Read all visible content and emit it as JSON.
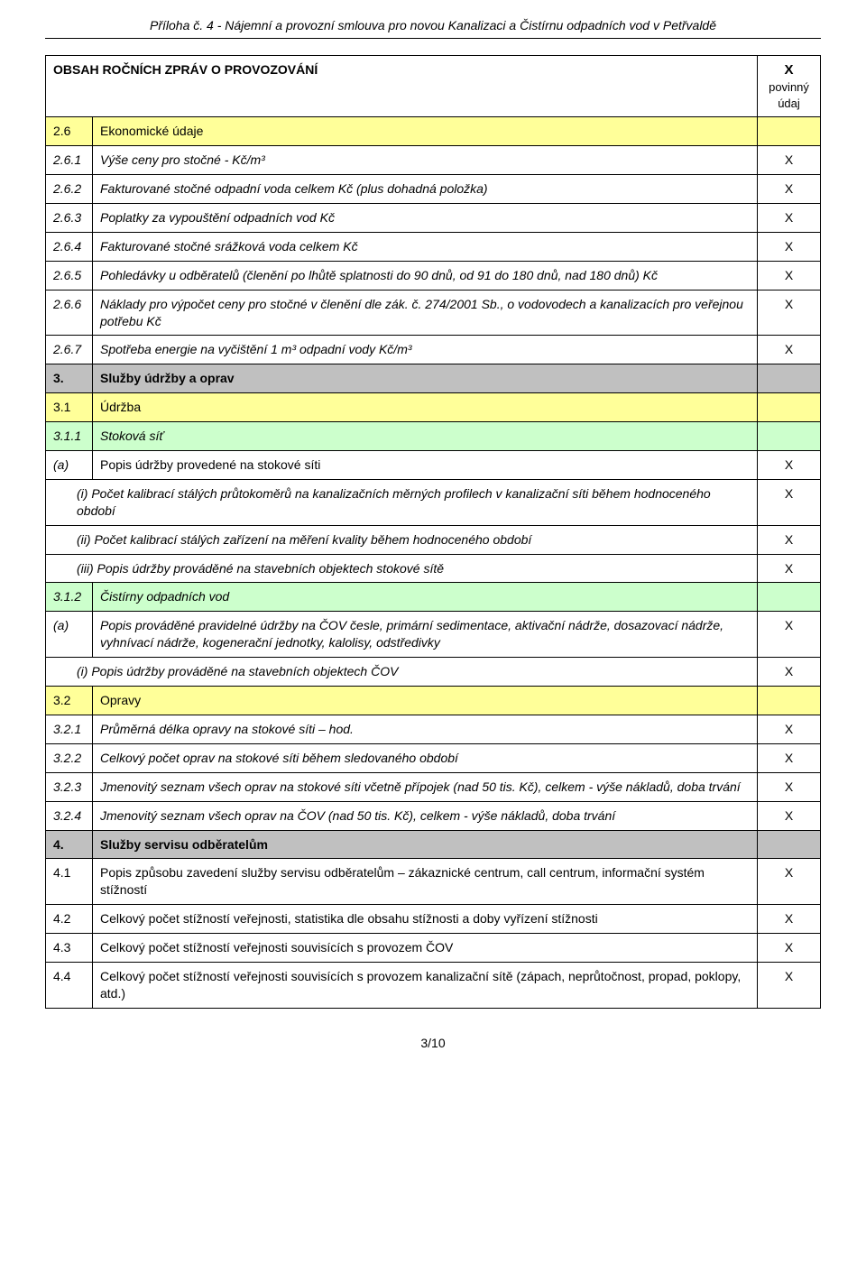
{
  "header": "Příloha č. 4 - Nájemní a provozní smlouva pro novou Kanalizaci a Čistírnu odpadních vod v Petřvaldě",
  "tableTitle": "OBSAH ROČNÍCH ZPRÁV O PROVOZOVÁNÍ",
  "markHeader": {
    "x": "X",
    "label": "povinný údaj"
  },
  "rows": [
    {
      "type": "yellow",
      "num": "2.6",
      "text": "Ekonomické údaje",
      "mark": ""
    },
    {
      "type": "italic",
      "num": "2.6.1",
      "text": "Výše ceny pro stočné - Kč/m³",
      "mark": "X"
    },
    {
      "type": "italic",
      "num": "2.6.2",
      "text": "Fakturované stočné odpadní voda celkem Kč  (plus dohadná položka)",
      "mark": "X"
    },
    {
      "type": "italic",
      "num": "2.6.3",
      "text": "Poplatky za vypouštění odpadních vod Kč",
      "mark": "X"
    },
    {
      "type": "italic",
      "num": "2.6.4",
      "text": "Fakturované stočné srážková voda celkem Kč",
      "mark": "X"
    },
    {
      "type": "italic",
      "num": "2.6.5",
      "text": "Pohledávky u odběratelů (členění po lhůtě splatnosti do 90 dnů, od 91 do 180 dnů, nad 180 dnů) Kč",
      "mark": "X"
    },
    {
      "type": "italic",
      "num": "2.6.6",
      "text": "Náklady pro výpočet ceny pro stočné v členění dle zák. č. 274/2001 Sb., o vodovodech a kanalizacích pro veřejnou potřebu Kč",
      "mark": "X"
    },
    {
      "type": "italic",
      "num": "2.6.7",
      "text": "Spotřeba energie na vyčištění 1 m³ odpadní vody Kč/m³",
      "mark": "X"
    },
    {
      "type": "gray",
      "num": "3.",
      "text": "Služby údržby a oprav",
      "mark": ""
    },
    {
      "type": "yellow",
      "num": "3.1",
      "text": "Údržba",
      "mark": ""
    },
    {
      "type": "green",
      "num": "3.1.1",
      "text": "Stoková síť",
      "mark": ""
    },
    {
      "type": "plain",
      "num_a": "(a)",
      "text": "Popis údržby provedené na stokové síti",
      "mark": "X"
    },
    {
      "type": "indent",
      "num_i": "(i)",
      "text": "Počet kalibrací stálých průtokoměrů na kanalizačních měrných profilech v kanalizační síti během hodnoceného období",
      "mark": "X"
    },
    {
      "type": "indent",
      "num_i": "(ii)",
      "text": "Počet kalibrací stálých zařízení na měření kvality během hodnoceného období",
      "mark": "X"
    },
    {
      "type": "indent",
      "num_i": "(iii)",
      "text": "Popis údržby prováděné na stavebních objektech stokové sítě",
      "mark": "X"
    },
    {
      "type": "green",
      "num": "3.1.2",
      "text": "Čistírny odpadních vod",
      "mark": ""
    },
    {
      "type": "plain",
      "num_a": "(a)",
      "text": "Popis prováděné pravidelné údržby na ČOV česle, primární sedimentace, aktivační nádrže, dosazovací nádrže, vyhnívací nádrže, kogenerační jednotky, kalolisy, odstředivky",
      "italicText": true,
      "mark": "X"
    },
    {
      "type": "indent",
      "num_i": "(i)",
      "text": "Popis údržby prováděné na stavebních objektech ČOV",
      "mark": "X"
    },
    {
      "type": "yellow",
      "num": "3.2",
      "text": "Opravy",
      "mark": ""
    },
    {
      "type": "italic",
      "num": "3.2.1",
      "text": "Průměrná délka opravy na stokové síti – hod.",
      "mark": "X"
    },
    {
      "type": "italic",
      "num": "3.2.2",
      "text": "Celkový počet oprav na stokové síti během sledovaného období",
      "mark": "X"
    },
    {
      "type": "italic",
      "num": "3.2.3",
      "text": "Jmenovitý seznam všech oprav na stokové síti včetně přípojek (nad 50 tis. Kč), celkem - výše nákladů, doba trvání",
      "mark": "X"
    },
    {
      "type": "italic",
      "num": "3.2.4",
      "text": "Jmenovitý seznam všech oprav na ČOV (nad 50 tis. Kč), celkem - výše nákladů, doba trvání",
      "mark": "X"
    },
    {
      "type": "gray",
      "num": "4.",
      "text": "Služby servisu odběratelům",
      "mark": ""
    },
    {
      "type": "plain",
      "num": "4.1",
      "text": "Popis způsobu zavedení služby servisu odběratelům – zákaznické centrum, call centrum, informační systém stížností",
      "mark": "X"
    },
    {
      "type": "plain",
      "num": "4.2",
      "text": "Celkový počet stížností veřejnosti, statistika dle obsahu stížnosti a doby vyřízení stížnosti",
      "mark": "X"
    },
    {
      "type": "plain",
      "num": "4.3",
      "text": "Celkový počet stížností veřejnosti souvisících s provozem ČOV",
      "mark": "X"
    },
    {
      "type": "plain",
      "num": "4.4",
      "text": "Celkový počet stížností veřejnosti souvisících s provozem kanalizační sítě (zápach, neprůtočnost, propad, poklopy, atd.)",
      "mark": "X"
    }
  ],
  "footer": "3/10"
}
